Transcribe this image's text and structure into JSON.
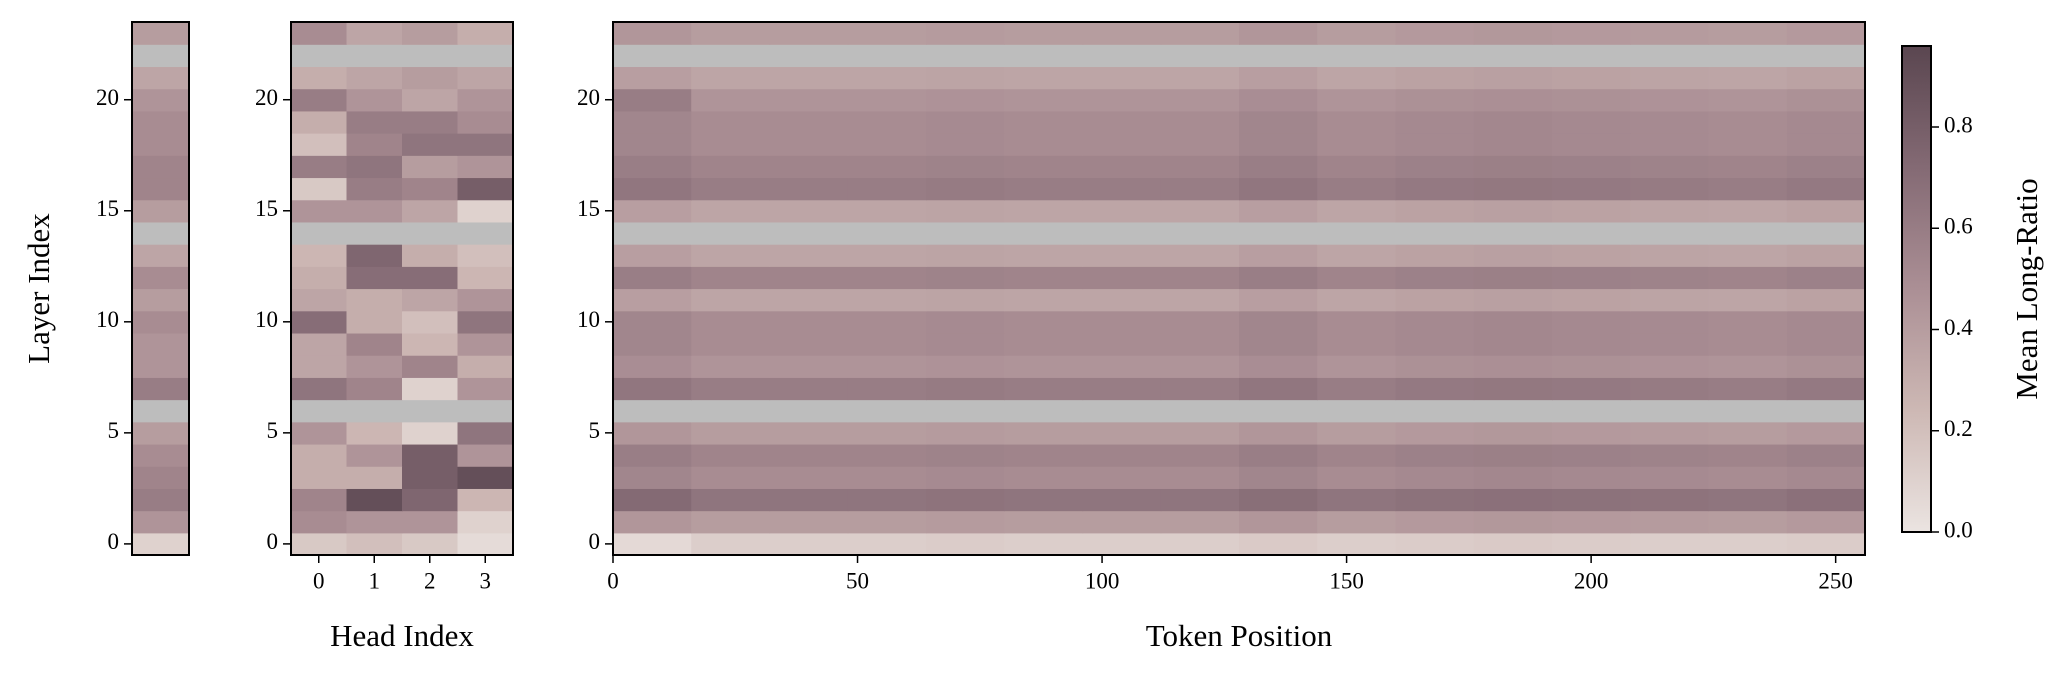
{
  "chart_data": [
    {
      "type": "heatmap",
      "ylabel": "Layer Index",
      "ylim": [
        -0.5,
        23.5
      ],
      "yticks": [
        0,
        5,
        10,
        15,
        20
      ],
      "values": [
        [
          0.1
        ],
        [
          0.45
        ],
        [
          0.6
        ],
        [
          0.55
        ],
        [
          0.5
        ],
        [
          0.4
        ],
        [
          null
        ],
        [
          0.6
        ],
        [
          0.45
        ],
        [
          0.45
        ],
        [
          0.5
        ],
        [
          0.4
        ],
        [
          0.5
        ],
        [
          0.35
        ],
        [
          null
        ],
        [
          0.4
        ],
        [
          0.55
        ],
        [
          0.55
        ],
        [
          0.5
        ],
        [
          0.5
        ],
        [
          0.45
        ],
        [
          0.35
        ],
        [
          null
        ],
        [
          0.4
        ]
      ]
    },
    {
      "type": "heatmap",
      "xlabel": "Head Index",
      "xlim": [
        -0.5,
        3.5
      ],
      "xticks": [
        0,
        1,
        2,
        3
      ],
      "ylim": [
        -0.5,
        23.5
      ],
      "yticks": [
        0,
        5,
        10,
        15,
        20
      ],
      "values": [
        [
          0.15,
          0.2,
          0.15,
          0.05
        ],
        [
          0.5,
          0.45,
          0.45,
          0.1
        ],
        [
          0.55,
          0.9,
          0.75,
          0.25
        ],
        [
          0.3,
          0.3,
          0.8,
          0.9
        ],
        [
          0.3,
          0.45,
          0.8,
          0.45
        ],
        [
          0.45,
          0.25,
          0.1,
          0.65
        ],
        [
          null,
          null,
          null,
          null
        ],
        [
          0.65,
          0.55,
          0.1,
          0.45
        ],
        [
          0.35,
          0.45,
          0.55,
          0.3
        ],
        [
          0.35,
          0.55,
          0.25,
          0.45
        ],
        [
          0.7,
          0.3,
          0.2,
          0.65
        ],
        [
          0.35,
          0.3,
          0.35,
          0.45
        ],
        [
          0.3,
          0.7,
          0.7,
          0.25
        ],
        [
          0.25,
          0.75,
          0.3,
          0.2
        ],
        [
          null,
          null,
          null,
          null
        ],
        [
          0.45,
          0.45,
          0.35,
          0.1
        ],
        [
          0.15,
          0.6,
          0.55,
          0.8
        ],
        [
          0.6,
          0.65,
          0.4,
          0.45
        ],
        [
          0.2,
          0.55,
          0.65,
          0.65
        ],
        [
          0.3,
          0.6,
          0.6,
          0.5
        ],
        [
          0.6,
          0.45,
          0.35,
          0.45
        ],
        [
          0.3,
          0.35,
          0.4,
          0.35
        ],
        [
          null,
          null,
          null,
          null
        ],
        [
          0.5,
          0.35,
          0.4,
          0.3
        ]
      ]
    },
    {
      "type": "heatmap",
      "xlabel": "Token Position",
      "xlim": [
        0,
        256
      ],
      "xticks": [
        0,
        50,
        100,
        150,
        200,
        250
      ],
      "ylim": [
        -0.5,
        23.5
      ],
      "yticks": [
        0,
        5,
        10,
        15,
        20
      ],
      "bins": [
        0,
        16,
        32,
        48,
        64,
        80,
        96,
        112,
        128,
        144,
        160,
        176,
        192,
        208,
        224,
        240,
        256
      ],
      "values": [
        [
          0.06,
          0.12,
          0.12,
          0.12,
          0.13,
          0.12,
          0.12,
          0.12,
          0.14,
          0.12,
          0.13,
          0.14,
          0.13,
          0.12,
          0.12,
          0.13
        ],
        [
          0.44,
          0.4,
          0.4,
          0.4,
          0.41,
          0.4,
          0.4,
          0.4,
          0.44,
          0.4,
          0.42,
          0.43,
          0.42,
          0.41,
          0.4,
          0.42
        ],
        [
          0.72,
          0.65,
          0.65,
          0.65,
          0.66,
          0.65,
          0.65,
          0.65,
          0.69,
          0.65,
          0.67,
          0.68,
          0.67,
          0.66,
          0.65,
          0.68
        ],
        [
          0.54,
          0.5,
          0.5,
          0.5,
          0.51,
          0.5,
          0.5,
          0.5,
          0.54,
          0.5,
          0.52,
          0.53,
          0.52,
          0.51,
          0.5,
          0.52
        ],
        [
          0.59,
          0.55,
          0.55,
          0.55,
          0.56,
          0.55,
          0.55,
          0.55,
          0.59,
          0.55,
          0.57,
          0.58,
          0.57,
          0.56,
          0.55,
          0.57
        ],
        [
          0.44,
          0.4,
          0.4,
          0.4,
          0.41,
          0.4,
          0.4,
          0.4,
          0.44,
          0.4,
          0.42,
          0.43,
          0.42,
          0.41,
          0.4,
          0.42
        ],
        [
          null,
          null,
          null,
          null,
          null,
          null,
          null,
          null,
          null,
          null,
          null,
          null,
          null,
          null,
          null,
          null
        ],
        [
          0.64,
          0.6,
          0.6,
          0.6,
          0.61,
          0.6,
          0.6,
          0.6,
          0.64,
          0.6,
          0.62,
          0.63,
          0.62,
          0.61,
          0.6,
          0.62
        ],
        [
          0.49,
          0.45,
          0.45,
          0.45,
          0.46,
          0.45,
          0.45,
          0.45,
          0.49,
          0.45,
          0.47,
          0.48,
          0.47,
          0.46,
          0.45,
          0.47
        ],
        [
          0.54,
          0.5,
          0.5,
          0.5,
          0.51,
          0.5,
          0.5,
          0.5,
          0.54,
          0.5,
          0.52,
          0.53,
          0.52,
          0.51,
          0.5,
          0.52
        ],
        [
          0.54,
          0.5,
          0.5,
          0.5,
          0.51,
          0.5,
          0.5,
          0.5,
          0.54,
          0.5,
          0.52,
          0.53,
          0.52,
          0.51,
          0.5,
          0.52
        ],
        [
          0.39,
          0.35,
          0.35,
          0.35,
          0.36,
          0.35,
          0.35,
          0.35,
          0.39,
          0.35,
          0.37,
          0.38,
          0.37,
          0.36,
          0.35,
          0.37
        ],
        [
          0.59,
          0.55,
          0.55,
          0.55,
          0.56,
          0.55,
          0.55,
          0.55,
          0.59,
          0.55,
          0.57,
          0.58,
          0.57,
          0.56,
          0.55,
          0.57
        ],
        [
          0.39,
          0.35,
          0.35,
          0.35,
          0.36,
          0.35,
          0.35,
          0.35,
          0.39,
          0.35,
          0.37,
          0.38,
          0.37,
          0.36,
          0.35,
          0.37
        ],
        [
          null,
          null,
          null,
          null,
          null,
          null,
          null,
          null,
          null,
          null,
          null,
          null,
          null,
          null,
          null,
          null
        ],
        [
          0.39,
          0.35,
          0.35,
          0.35,
          0.36,
          0.35,
          0.35,
          0.35,
          0.39,
          0.35,
          0.37,
          0.38,
          0.37,
          0.36,
          0.35,
          0.37
        ],
        [
          0.64,
          0.6,
          0.6,
          0.6,
          0.61,
          0.6,
          0.6,
          0.6,
          0.64,
          0.6,
          0.62,
          0.63,
          0.62,
          0.61,
          0.6,
          0.62
        ],
        [
          0.59,
          0.55,
          0.55,
          0.55,
          0.56,
          0.55,
          0.55,
          0.55,
          0.59,
          0.55,
          0.57,
          0.58,
          0.57,
          0.56,
          0.55,
          0.57
        ],
        [
          0.54,
          0.5,
          0.5,
          0.5,
          0.51,
          0.5,
          0.5,
          0.5,
          0.54,
          0.5,
          0.52,
          0.53,
          0.52,
          0.51,
          0.5,
          0.52
        ],
        [
          0.54,
          0.5,
          0.5,
          0.5,
          0.51,
          0.5,
          0.5,
          0.5,
          0.54,
          0.5,
          0.52,
          0.53,
          0.52,
          0.51,
          0.5,
          0.52
        ],
        [
          0.6,
          0.45,
          0.45,
          0.45,
          0.46,
          0.45,
          0.45,
          0.45,
          0.49,
          0.45,
          0.47,
          0.48,
          0.47,
          0.46,
          0.45,
          0.47
        ],
        [
          0.39,
          0.35,
          0.35,
          0.35,
          0.36,
          0.35,
          0.35,
          0.35,
          0.39,
          0.35,
          0.37,
          0.38,
          0.37,
          0.36,
          0.35,
          0.37
        ],
        [
          null,
          null,
          null,
          null,
          null,
          null,
          null,
          null,
          null,
          null,
          null,
          null,
          null,
          null,
          null,
          null
        ],
        [
          0.44,
          0.4,
          0.4,
          0.4,
          0.41,
          0.4,
          0.4,
          0.4,
          0.44,
          0.4,
          0.42,
          0.43,
          0.42,
          0.41,
          0.4,
          0.42
        ]
      ]
    },
    {
      "type": "colorbar",
      "label": "Mean Long-Ratio",
      "clim": [
        0,
        0.96
      ],
      "ticks": [
        {
          "value": 0,
          "label": "0.0"
        },
        0.2,
        0.4,
        0.6,
        0.8
      ],
      "colormap": [
        "#ebe4e1",
        "#cdb8b4",
        "#ab8f95",
        "#846a74",
        "#5a4650"
      ],
      "null_color": "#bdbdbd"
    }
  ]
}
